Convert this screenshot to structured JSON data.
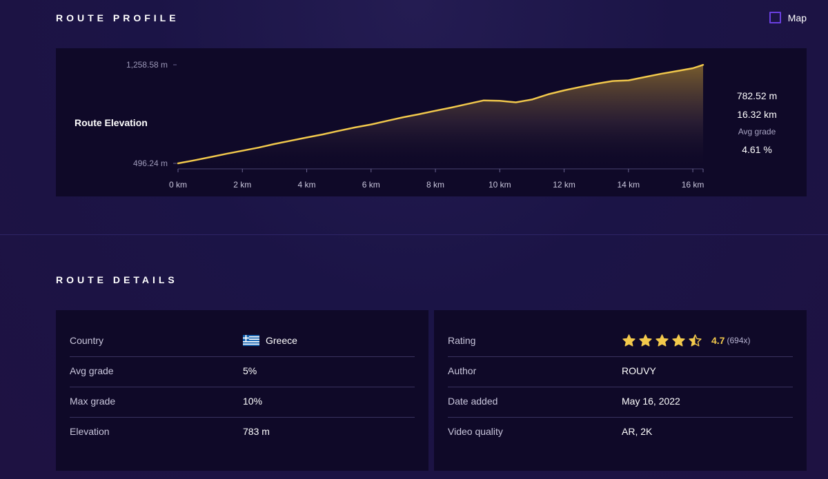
{
  "profile": {
    "title": "ROUTE PROFILE",
    "map_toggle_label": "Map",
    "chart_label": "Route Elevation",
    "stats": {
      "elevation": "782.52 m",
      "distance": "16.32 km",
      "avg_grade_caption": "Avg grade",
      "avg_grade": "4.61 %"
    }
  },
  "chart_data": {
    "type": "area",
    "title": "Route Elevation",
    "xlabel": "",
    "ylabel": "",
    "x_unit": "km",
    "y_unit": "m",
    "xlim": [
      0,
      16.32
    ],
    "ylim": [
      496.24,
      1258.58
    ],
    "x_tick_labels": [
      "0 km",
      "2 km",
      "4 km",
      "6 km",
      "8 km",
      "10 km",
      "12 km",
      "14 km",
      "16 km"
    ],
    "x_ticks": [
      0,
      2,
      4,
      6,
      8,
      10,
      12,
      14,
      16
    ],
    "y_tick_labels": [
      "496.24 m",
      "1,258.58 m"
    ],
    "y_ticks": [
      496.24,
      1258.58
    ],
    "grid": false,
    "line_color": "#f2c94c",
    "series": [
      {
        "x": [
          0,
          0.5,
          1,
          1.5,
          2,
          2.5,
          3,
          3.5,
          4,
          4.5,
          5,
          5.5,
          6,
          6.5,
          7,
          7.5,
          8,
          8.5,
          9,
          9.5,
          10,
          10.5,
          11,
          11.5,
          12,
          12.5,
          13,
          13.5,
          14,
          14.5,
          15,
          15.5,
          16,
          16.32
        ],
        "y": [
          496,
          519,
          544,
          570,
          594,
          618,
          646,
          671,
          696,
          720,
          748,
          774,
          797,
          825,
          853,
          877,
          903,
          928,
          956,
          983,
          980,
          968,
          990,
          1030,
          1061,
          1087,
          1112,
          1133,
          1138,
          1163,
          1188,
          1210,
          1232,
          1258
        ]
      }
    ]
  },
  "details": {
    "title": "ROUTE DETAILS",
    "left": [
      {
        "label": "Country",
        "value": "Greece"
      },
      {
        "label": "Avg grade",
        "value": "5%"
      },
      {
        "label": "Max grade",
        "value": "10%"
      },
      {
        "label": "Elevation",
        "value": "783 m"
      }
    ],
    "right": [
      {
        "label": "Rating",
        "value": "4.7",
        "count": "(694x)",
        "stars": 4.5
      },
      {
        "label": "Author",
        "value": "ROUVY"
      },
      {
        "label": "Date added",
        "value": "May 16, 2022"
      },
      {
        "label": "Video quality",
        "value": "AR, 2K"
      }
    ]
  },
  "colors": {
    "accent": "#6a3fe0",
    "star": "#f2c94c",
    "card_bg": "#0f0928"
  }
}
